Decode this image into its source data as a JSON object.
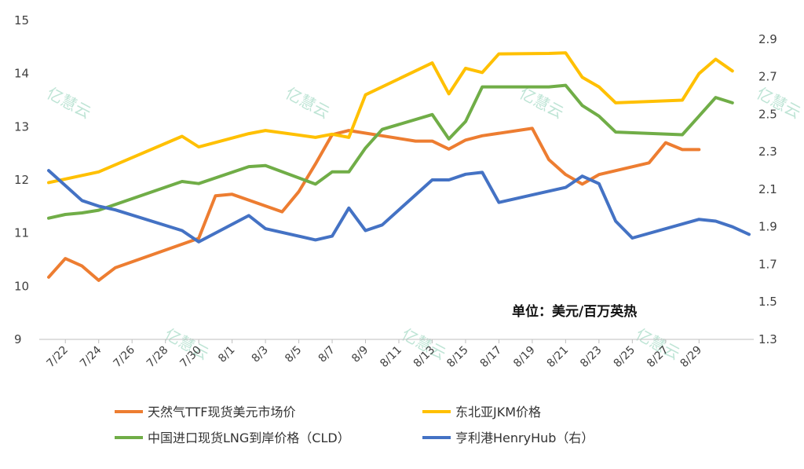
{
  "chart_data": {
    "type": "line",
    "title": "",
    "xlabel": "",
    "ylabel": "",
    "unit_note": "单位：美元/百万英热",
    "watermark": "亿慧云",
    "y_left": {
      "min": 9,
      "max": 15,
      "ticks": [
        9,
        10,
        11,
        12,
        13,
        14,
        15
      ]
    },
    "y_right": {
      "min": 1.3,
      "max": 3.0,
      "ticks": [
        1.3,
        1.5,
        1.7,
        1.9,
        2.1,
        2.3,
        2.5,
        2.7,
        2.9
      ]
    },
    "x_ticks": [
      "7/22",
      "7/24",
      "7/26",
      "7/28",
      "7/30",
      "8/1",
      "8/3",
      "8/5",
      "8/7",
      "8/9",
      "8/11",
      "8/13",
      "8/15",
      "8/17",
      "8/19",
      "8/21",
      "8/23",
      "8/25",
      "8/27",
      "8/29"
    ],
    "grid": false,
    "legend_position": "bottom",
    "series": [
      {
        "name": "天然气TTF现货美元市场价",
        "axis": "left",
        "color": "#ED7D31",
        "points": [
          [
            0,
            10.17
          ],
          [
            1,
            10.52
          ],
          [
            2,
            10.38
          ],
          [
            3,
            10.11
          ],
          [
            4,
            10.35
          ],
          [
            9,
            10.9
          ],
          [
            10,
            11.7
          ],
          [
            11,
            11.73
          ],
          [
            14,
            11.4
          ],
          [
            15,
            11.78
          ],
          [
            16,
            12.3
          ],
          [
            17,
            12.85
          ],
          [
            18,
            12.93
          ],
          [
            22,
            12.73
          ],
          [
            23,
            12.73
          ],
          [
            24,
            12.58
          ],
          [
            25,
            12.75
          ],
          [
            26,
            12.83
          ],
          [
            29,
            12.97
          ],
          [
            30,
            12.38
          ],
          [
            31,
            12.1
          ],
          [
            32,
            11.92
          ],
          [
            33,
            12.1
          ],
          [
            36,
            12.32
          ],
          [
            37,
            12.7
          ],
          [
            38,
            12.57
          ],
          [
            39,
            12.57
          ]
        ]
      },
      {
        "name": "东北亚JKM价格",
        "axis": "left",
        "color": "#FFC000",
        "points": [
          [
            0,
            11.95
          ],
          [
            3,
            12.15
          ],
          [
            8,
            12.82
          ],
          [
            9,
            12.62
          ],
          [
            12,
            12.87
          ],
          [
            13,
            12.93
          ],
          [
            16,
            12.8
          ],
          [
            17,
            12.86
          ],
          [
            18,
            12.8
          ],
          [
            19,
            13.6
          ],
          [
            23,
            14.2
          ],
          [
            24,
            13.62
          ],
          [
            25,
            14.1
          ],
          [
            26,
            14.02
          ],
          [
            27,
            14.37
          ],
          [
            30,
            14.38
          ],
          [
            31,
            14.39
          ],
          [
            32,
            13.93
          ],
          [
            33,
            13.75
          ],
          [
            34,
            13.45
          ],
          [
            38,
            13.5
          ],
          [
            39,
            14.0
          ],
          [
            40,
            14.27
          ],
          [
            41,
            14.05
          ]
        ]
      },
      {
        "name": "中国进口现货LNG到岸价格（CLD）",
        "axis": "left",
        "color": "#70AD47",
        "points": [
          [
            0,
            11.28
          ],
          [
            1,
            11.35
          ],
          [
            2,
            11.38
          ],
          [
            3,
            11.43
          ],
          [
            8,
            11.97
          ],
          [
            9,
            11.93
          ],
          [
            12,
            12.25
          ],
          [
            13,
            12.27
          ],
          [
            16,
            11.92
          ],
          [
            17,
            12.15
          ],
          [
            18,
            12.15
          ],
          [
            19,
            12.6
          ],
          [
            20,
            12.95
          ],
          [
            23,
            13.23
          ],
          [
            24,
            12.77
          ],
          [
            25,
            13.1
          ],
          [
            26,
            13.75
          ],
          [
            30,
            13.75
          ],
          [
            31,
            13.78
          ],
          [
            32,
            13.4
          ],
          [
            33,
            13.2
          ],
          [
            34,
            12.9
          ],
          [
            38,
            12.85
          ],
          [
            39,
            13.2
          ],
          [
            40,
            13.55
          ],
          [
            41,
            13.45
          ]
        ]
      },
      {
        "name": "亨利港HenryHub（右）",
        "axis": "right",
        "color": "#4472C4",
        "points": [
          [
            0,
            2.2
          ],
          [
            2,
            2.04
          ],
          [
            3,
            2.01
          ],
          [
            4,
            1.99
          ],
          [
            8,
            1.88
          ],
          [
            9,
            1.82
          ],
          [
            12,
            1.96
          ],
          [
            13,
            1.89
          ],
          [
            16,
            1.83
          ],
          [
            17,
            1.85
          ],
          [
            18,
            2.0
          ],
          [
            19,
            1.88
          ],
          [
            20,
            1.91
          ],
          [
            23,
            2.15
          ],
          [
            24,
            2.15
          ],
          [
            25,
            2.18
          ],
          [
            26,
            2.19
          ],
          [
            27,
            2.03
          ],
          [
            29,
            2.07
          ],
          [
            31,
            2.11
          ],
          [
            32,
            2.17
          ],
          [
            33,
            2.13
          ],
          [
            34,
            1.93
          ],
          [
            35,
            1.84
          ],
          [
            39,
            1.94
          ],
          [
            40,
            1.93
          ],
          [
            41,
            1.9
          ],
          [
            42,
            1.86
          ]
        ]
      }
    ]
  }
}
